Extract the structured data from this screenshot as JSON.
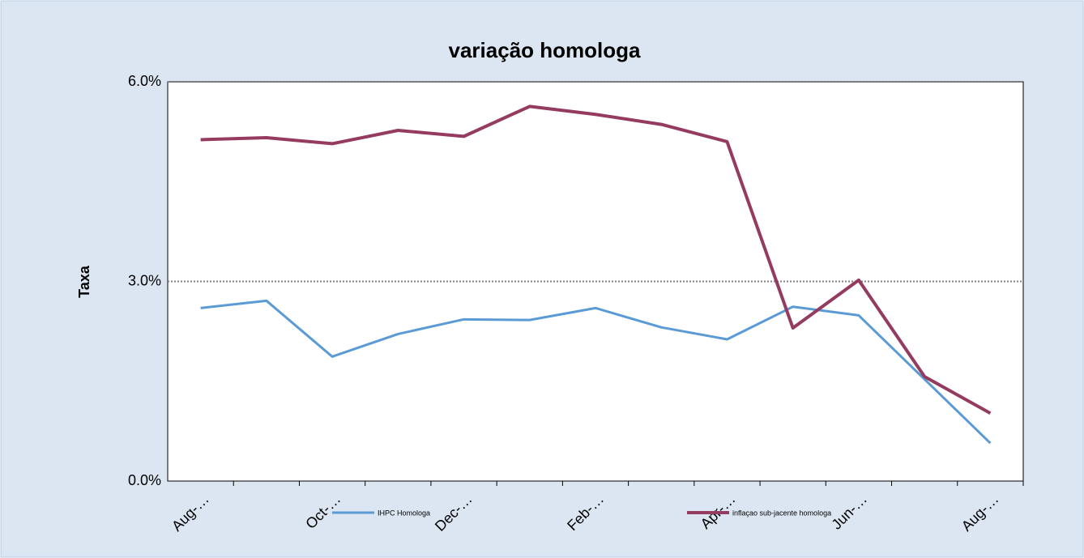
{
  "chart_data": {
    "type": "line",
    "title": "variação homologa",
    "y_label": "Taxa",
    "categories": [
      "Aug-…",
      null,
      "Oct-…",
      null,
      "Dec-…",
      null,
      "Feb-…",
      null,
      "Apr-…",
      null,
      "Jun-…",
      null,
      "Aug-…"
    ],
    "series": [
      {
        "name": "IHPC Homologa",
        "color": "#5b9bd5",
        "values": [
          2.6,
          2.71,
          1.87,
          2.21,
          2.43,
          2.42,
          2.6,
          2.31,
          2.13,
          2.62,
          2.49,
          1.53,
          0.57
        ]
      },
      {
        "name": "inflaçao sub-jacente homologa",
        "color": "#953b60",
        "values": [
          5.13,
          5.16,
          5.07,
          5.27,
          5.18,
          5.63,
          5.51,
          5.36,
          5.1,
          2.3,
          3.02,
          1.57,
          1.02
        ]
      }
    ],
    "ylim": [
      0,
      6
    ],
    "yticks": [
      {
        "value": 0,
        "label": "0.0%"
      },
      {
        "value": 3,
        "label": "3.0%"
      },
      {
        "value": 6,
        "label": "6.0%"
      }
    ],
    "grid": true
  }
}
